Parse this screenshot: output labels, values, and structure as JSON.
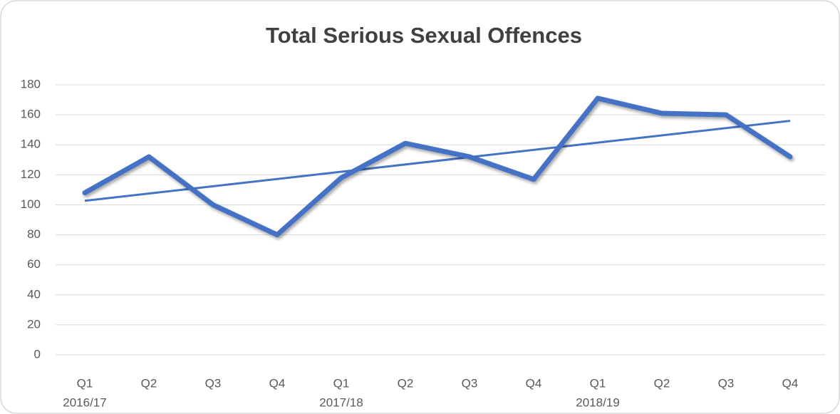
{
  "chart_data": {
    "type": "line",
    "title": "Total Serious Sexual Offences",
    "categories": [
      "Q1",
      "Q2",
      "Q3",
      "Q4",
      "Q1",
      "Q2",
      "Q3",
      "Q4",
      "Q1",
      "Q2",
      "Q3",
      "Q4"
    ],
    "year_labels": [
      "2016/17",
      null,
      null,
      null,
      "2017/18",
      null,
      null,
      null,
      "2018/19",
      null,
      null,
      null
    ],
    "series": [
      {
        "name": "Total Serious Sexual Offences",
        "color": "#4472c4",
        "values": [
          108,
          132,
          100,
          80,
          118,
          141,
          132,
          117,
          171,
          161,
          160,
          132
        ]
      }
    ],
    "trendline": {
      "type": "linear",
      "color": "#4472c4"
    },
    "ylim": [
      0,
      180
    ],
    "yticks": [
      0,
      20,
      40,
      60,
      80,
      100,
      120,
      140,
      160,
      180
    ],
    "grid": true
  }
}
